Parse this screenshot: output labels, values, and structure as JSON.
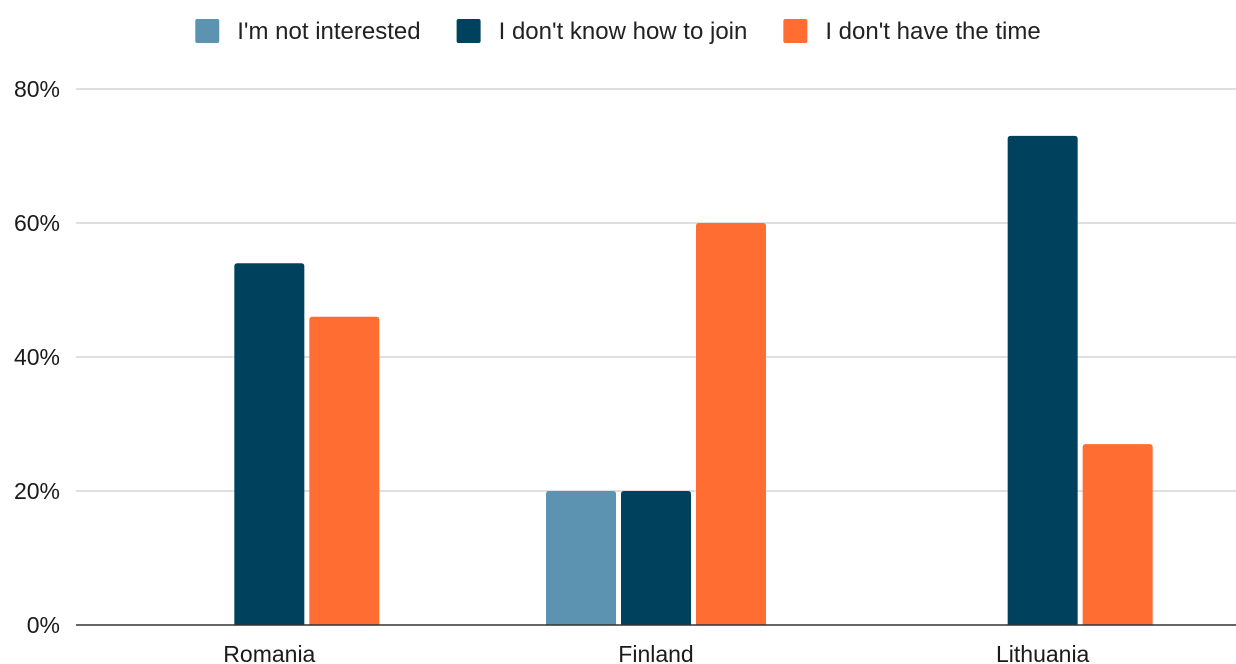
{
  "chart_data": {
    "type": "bar",
    "categories": [
      "Romania",
      "Finland",
      "Lithuania"
    ],
    "series": [
      {
        "name": "I'm not interested",
        "color": "#5b93b1",
        "values": [
          0,
          20,
          0
        ]
      },
      {
        "name": "I don't know how to join",
        "color": "#00425e",
        "values": [
          54,
          20,
          73
        ]
      },
      {
        "name": "I don't have the time",
        "color": "#ff6d33",
        "values": [
          46,
          60,
          27
        ]
      }
    ],
    "yaxis": {
      "min": 0,
      "max": 80,
      "ticks": [
        {
          "value": 0,
          "label": "0%"
        },
        {
          "value": 20,
          "label": "20%"
        },
        {
          "value": 40,
          "label": "40%"
        },
        {
          "value": 60,
          "label": "60%"
        },
        {
          "value": 80,
          "label": "80%"
        }
      ]
    },
    "legend_position": "top",
    "grid": true,
    "title": "",
    "xlabel": "",
    "ylabel": ""
  }
}
